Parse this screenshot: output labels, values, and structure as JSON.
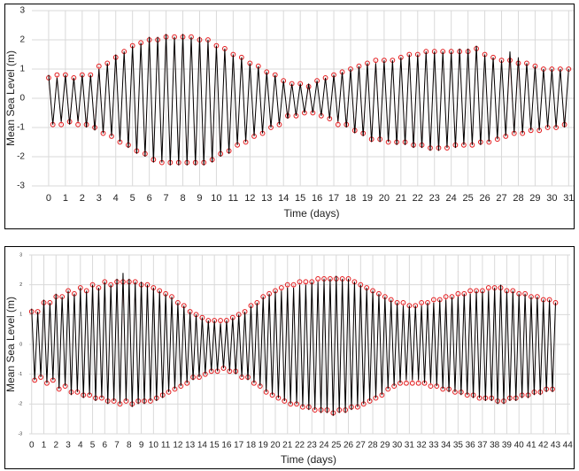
{
  "chart_data": [
    {
      "type": "line",
      "xlabel": "Time (days)",
      "ylabel": "Mean Sea Level (m)",
      "grid": true,
      "xlim": [
        -1,
        31.3
      ],
      "ylim": [
        -3,
        3
      ],
      "xticks": [
        0,
        1,
        2,
        3,
        4,
        5,
        6,
        7,
        8,
        9,
        10,
        11,
        12,
        13,
        14,
        15,
        16,
        17,
        18,
        19,
        20,
        21,
        22,
        23,
        24,
        25,
        26,
        27,
        28,
        29,
        30,
        31
      ],
      "yticks": [
        -3,
        -2,
        -1,
        0,
        1,
        2,
        3
      ],
      "x": [
        0,
        0.25,
        0.5,
        0.75,
        1,
        1.25,
        1.5,
        1.75,
        2,
        2.25,
        2.5,
        2.75,
        3,
        3.25,
        3.5,
        3.75,
        4,
        4.25,
        4.5,
        4.75,
        5,
        5.25,
        5.5,
        5.75,
        6,
        6.25,
        6.5,
        6.75,
        7,
        7.25,
        7.5,
        7.75,
        8,
        8.25,
        8.5,
        8.75,
        9,
        9.25,
        9.5,
        9.75,
        10,
        10.25,
        10.5,
        10.75,
        11,
        11.25,
        11.5,
        11.75,
        12,
        12.25,
        12.5,
        12.75,
        13,
        13.25,
        13.5,
        13.75,
        14,
        14.25,
        14.5,
        14.75,
        15,
        15.25,
        15.5,
        15.75,
        16,
        16.25,
        16.5,
        16.75,
        17,
        17.25,
        17.5,
        17.75,
        18,
        18.25,
        18.5,
        18.75,
        19,
        19.25,
        19.5,
        19.75,
        20,
        20.25,
        20.5,
        20.75,
        21,
        21.25,
        21.5,
        21.75,
        22,
        22.25,
        22.5,
        22.75,
        23,
        23.25,
        23.5,
        23.75,
        24,
        24.25,
        24.5,
        24.75,
        25,
        25.25,
        25.5,
        25.75,
        26,
        26.25,
        26.5,
        26.75,
        27,
        27.25,
        27.5,
        27.75,
        28,
        28.25,
        28.5,
        28.75,
        29,
        29.25,
        29.5,
        29.75,
        30,
        30.25,
        30.5,
        30.75,
        31
      ],
      "series": [
        {
          "color": "#e31a1c",
          "marker": "circle",
          "values": [
            0.7,
            -0.9,
            0.8,
            -0.9,
            0.8,
            -0.8,
            0.7,
            -0.9,
            0.8,
            -0.9,
            0.8,
            -1.0,
            1.1,
            -1.2,
            1.2,
            -1.3,
            1.4,
            -1.5,
            1.6,
            -1.6,
            1.8,
            -1.8,
            1.9,
            -1.9,
            2.0,
            -2.1,
            2.0,
            -2.2,
            2.1,
            -2.2,
            2.1,
            -2.2,
            2.1,
            -2.2,
            2.1,
            -2.2,
            2.0,
            -2.2,
            2.0,
            -2.1,
            1.8,
            -1.9,
            1.7,
            -1.8,
            1.5,
            -1.6,
            1.4,
            -1.5,
            1.2,
            -1.3,
            1.1,
            -1.2,
            0.9,
            -1.0,
            0.8,
            -0.9,
            0.6,
            -0.6,
            0.5,
            -0.6,
            0.5,
            -0.5,
            0.4,
            -0.5,
            0.6,
            -0.6,
            0.7,
            -0.7,
            0.8,
            -0.9,
            0.9,
            -0.9,
            1.0,
            -1.1,
            1.1,
            -1.2,
            1.2,
            -1.4,
            1.3,
            -1.4,
            1.3,
            -1.5,
            1.3,
            -1.5,
            1.4,
            -1.5,
            1.5,
            -1.6,
            1.5,
            -1.6,
            1.6,
            -1.7,
            1.6,
            -1.7,
            1.6,
            -1.7,
            1.6,
            -1.6,
            1.6,
            -1.6,
            1.6,
            -1.6,
            1.7,
            -1.5,
            1.5,
            -1.5,
            1.4,
            -1.4,
            1.3,
            -1.3,
            1.3,
            -1.2,
            1.2,
            -1.2,
            1.2,
            -1.1,
            1.1,
            -1.1,
            1.0,
            -1.0,
            1.0,
            -1.0,
            1.0,
            -0.9,
            1.0
          ]
        },
        {
          "color": "#000000",
          "values": [
            0.8,
            -0.9,
            0.7,
            -0.8,
            0.8,
            -0.9,
            0.7,
            -0.8,
            0.8,
            -1.0,
            0.8,
            -1.1,
            1.0,
            -1.2,
            1.2,
            -1.3,
            1.5,
            -1.5,
            1.6,
            -1.7,
            1.8,
            -1.9,
            1.9,
            -2.0,
            2.1,
            -2.2,
            2.1,
            -2.2,
            2.2,
            -2.3,
            2.1,
            -2.3,
            2.2,
            -2.3,
            2.1,
            -2.3,
            2.1,
            -2.3,
            2.0,
            -2.2,
            1.8,
            -2.0,
            1.7,
            -1.9,
            1.5,
            -1.6,
            1.4,
            -1.5,
            1.2,
            -1.3,
            1.1,
            -1.2,
            0.9,
            -1.0,
            0.8,
            -0.9,
            0.6,
            -0.7,
            0.5,
            -0.6,
            0.5,
            -0.5,
            0.5,
            -0.5,
            0.6,
            -0.6,
            0.7,
            -0.7,
            0.8,
            -0.8,
            0.9,
            -1.0,
            1.0,
            -1.2,
            1.1,
            -1.3,
            1.2,
            -1.5,
            1.2,
            -1.5,
            1.3,
            -1.5,
            1.3,
            -1.6,
            1.4,
            -1.6,
            1.5,
            -1.7,
            1.5,
            -1.7,
            1.6,
            -1.8,
            1.6,
            -1.8,
            1.6,
            -1.7,
            1.6,
            -1.7,
            1.7,
            -1.6,
            1.7,
            -1.6,
            1.8,
            -1.6,
            1.5,
            -1.5,
            1.4,
            -1.4,
            1.3,
            -1.3,
            1.6,
            -1.2,
            1.4,
            -1.2,
            1.2,
            -1.1,
            1.1,
            -1.1,
            1.0,
            -1.0,
            1.0,
            -1.0,
            1.0,
            -1.0,
            1.0
          ]
        }
      ]
    },
    {
      "type": "line",
      "xlabel": "Time (days)",
      "ylabel": "Mean Sea Level (m)",
      "grid": true,
      "xlim": [
        -0.2,
        44.2
      ],
      "ylim": [
        -3,
        3
      ],
      "xticks": [
        0,
        1,
        2,
        3,
        4,
        5,
        6,
        7,
        8,
        9,
        10,
        11,
        12,
        13,
        14,
        15,
        16,
        17,
        18,
        19,
        20,
        21,
        22,
        23,
        24,
        25,
        26,
        27,
        28,
        29,
        30,
        31,
        32,
        33,
        34,
        35,
        36,
        37,
        38,
        39,
        40,
        41,
        42,
        43,
        44
      ],
      "yticks": [
        -3,
        -2,
        -1,
        0,
        1,
        2,
        3
      ],
      "x": [
        0,
        0.25,
        0.5,
        0.75,
        1,
        1.25,
        1.5,
        1.75,
        2,
        2.25,
        2.5,
        2.75,
        3,
        3.25,
        3.5,
        3.75,
        4,
        4.25,
        4.5,
        4.75,
        5,
        5.25,
        5.5,
        5.75,
        6,
        6.25,
        6.5,
        6.75,
        7,
        7.25,
        7.5,
        7.75,
        8,
        8.25,
        8.5,
        8.75,
        9,
        9.25,
        9.5,
        9.75,
        10,
        10.25,
        10.5,
        10.75,
        11,
        11.25,
        11.5,
        11.75,
        12,
        12.25,
        12.5,
        12.75,
        13,
        13.25,
        13.5,
        13.75,
        14,
        14.25,
        14.5,
        14.75,
        15,
        15.25,
        15.5,
        15.75,
        16,
        16.25,
        16.5,
        16.75,
        17,
        17.25,
        17.5,
        17.75,
        18,
        18.25,
        18.5,
        18.75,
        19,
        19.25,
        19.5,
        19.75,
        20,
        20.25,
        20.5,
        20.75,
        21,
        21.25,
        21.5,
        21.75,
        22,
        22.25,
        22.5,
        22.75,
        23,
        23.25,
        23.5,
        23.75,
        24,
        24.25,
        24.5,
        24.75,
        25,
        25.25,
        25.5,
        25.75,
        26,
        26.25,
        26.5,
        26.75,
        27,
        27.25,
        27.5,
        27.75,
        28,
        28.25,
        28.5,
        28.75,
        29,
        29.25,
        29.5,
        29.75,
        30,
        30.25,
        30.5,
        30.75,
        31,
        31.25,
        31.5,
        31.75,
        32,
        32.25,
        32.5,
        32.75,
        33,
        33.25,
        33.5,
        33.75,
        34,
        34.25,
        34.5,
        34.75,
        35,
        35.25,
        35.5,
        35.75,
        36,
        36.25,
        36.5,
        36.75,
        37,
        37.25,
        37.5,
        37.75,
        38,
        38.25,
        38.5,
        38.75,
        39,
        39.25,
        39.5,
        39.75,
        40,
        40.25,
        40.5,
        40.75,
        41,
        41.25,
        41.5,
        41.75,
        42,
        42.25,
        42.5,
        42.75,
        43
      ],
      "series": [
        {
          "color": "#e31a1c",
          "marker": "circle",
          "values": [
            1.1,
            -1.2,
            1.1,
            -1.1,
            1.4,
            -1.3,
            1.4,
            -1.2,
            1.6,
            -1.5,
            1.6,
            -1.4,
            1.8,
            -1.6,
            1.7,
            -1.6,
            1.9,
            -1.7,
            1.8,
            -1.7,
            2.0,
            -1.8,
            1.9,
            -1.8,
            2.1,
            -1.9,
            2.0,
            -1.9,
            2.1,
            -2.0,
            2.1,
            -1.9,
            2.1,
            -2.0,
            2.1,
            -1.9,
            2.0,
            -1.9,
            2.0,
            -1.9,
            1.9,
            -1.8,
            1.8,
            -1.7,
            1.7,
            -1.6,
            1.6,
            -1.5,
            1.4,
            -1.4,
            1.3,
            -1.3,
            1.1,
            -1.1,
            1.0,
            -1.1,
            0.9,
            -1.0,
            0.8,
            -0.9,
            0.8,
            -0.9,
            0.8,
            -0.8,
            0.8,
            -0.9,
            0.9,
            -0.9,
            1.0,
            -1.1,
            1.1,
            -1.1,
            1.3,
            -1.3,
            1.4,
            -1.4,
            1.6,
            -1.6,
            1.7,
            -1.7,
            1.8,
            -1.8,
            1.9,
            -1.9,
            2.0,
            -2.0,
            2.0,
            -2.0,
            2.1,
            -2.1,
            2.1,
            -2.1,
            2.1,
            -2.2,
            2.2,
            -2.2,
            2.2,
            -2.2,
            2.2,
            -2.3,
            2.2,
            -2.2,
            2.2,
            -2.2,
            2.2,
            -2.1,
            2.1,
            -2.1,
            2.0,
            -2.0,
            1.9,
            -1.9,
            1.8,
            -1.8,
            1.7,
            -1.7,
            1.6,
            -1.5,
            1.5,
            -1.4,
            1.4,
            -1.3,
            1.4,
            -1.3,
            1.3,
            -1.3,
            1.3,
            -1.3,
            1.4,
            -1.3,
            1.4,
            -1.4,
            1.5,
            -1.4,
            1.5,
            -1.5,
            1.6,
            -1.5,
            1.6,
            -1.6,
            1.7,
            -1.6,
            1.7,
            -1.7,
            1.8,
            -1.7,
            1.8,
            -1.8,
            1.8,
            -1.8,
            1.9,
            -1.8,
            1.9,
            -1.9,
            1.9,
            -1.9,
            1.8,
            -1.8,
            1.8,
            -1.8,
            1.7,
            -1.7,
            1.7,
            -1.7,
            1.6,
            -1.6,
            1.6,
            -1.6,
            1.5,
            -1.5,
            1.5,
            -1.5,
            1.4
          ]
        },
        {
          "color": "#000000",
          "values": [
            1.2,
            -1.2,
            1.1,
            -1.1,
            1.5,
            -1.3,
            1.4,
            -1.2,
            1.7,
            -1.5,
            1.6,
            -1.4,
            1.8,
            -1.7,
            1.7,
            -1.6,
            1.9,
            -1.8,
            1.8,
            -1.7,
            2.0,
            -1.9,
            1.9,
            -1.8,
            2.1,
            -2.0,
            2.0,
            -1.9,
            2.2,
            -2.0,
            2.4,
            -1.9,
            2.2,
            -2.1,
            2.1,
            -2.0,
            2.1,
            -2.0,
            2.0,
            -1.9,
            1.9,
            -1.9,
            1.8,
            -1.8,
            1.7,
            -1.6,
            1.6,
            -1.5,
            1.4,
            -1.4,
            1.3,
            -1.3,
            1.1,
            -1.2,
            1.0,
            -1.1,
            0.9,
            -1.0,
            0.8,
            -0.9,
            0.8,
            -0.9,
            0.7,
            -0.8,
            0.8,
            -0.9,
            0.9,
            -1.0,
            1.0,
            -1.1,
            1.1,
            -1.2,
            1.3,
            -1.3,
            1.4,
            -1.4,
            1.6,
            -1.6,
            1.7,
            -1.7,
            1.8,
            -1.8,
            1.8,
            -1.9,
            1.9,
            -2.0,
            1.9,
            -2.0,
            2.0,
            -2.1,
            2.0,
            -2.2,
            2.1,
            -2.2,
            2.1,
            -2.3,
            2.2,
            -2.3,
            2.2,
            -2.4,
            2.3,
            -2.3,
            2.2,
            -2.3,
            2.2,
            -2.2,
            2.1,
            -2.1,
            2.0,
            -2.0,
            1.9,
            -1.9,
            1.8,
            -1.8,
            1.7,
            -1.7,
            1.6,
            -1.5,
            1.5,
            -1.4,
            1.4,
            -1.3,
            1.3,
            -1.2,
            1.3,
            -1.2,
            1.3,
            -1.2,
            1.3,
            -1.3,
            1.4,
            -1.3,
            1.4,
            -1.4,
            1.5,
            -1.5,
            1.5,
            -1.6,
            1.6,
            -1.6,
            1.6,
            -1.7,
            1.7,
            -1.7,
            1.7,
            -1.8,
            1.8,
            -1.8,
            1.8,
            -1.9,
            1.8,
            -1.9,
            1.9,
            -2.0,
            2.0,
            -2.0,
            1.8,
            -1.9,
            1.8,
            -1.9,
            1.7,
            -1.8,
            1.7,
            -1.8,
            1.6,
            -1.7,
            1.6,
            -1.7,
            1.5,
            -1.6,
            1.5,
            -1.6,
            1.4
          ]
        }
      ]
    }
  ]
}
